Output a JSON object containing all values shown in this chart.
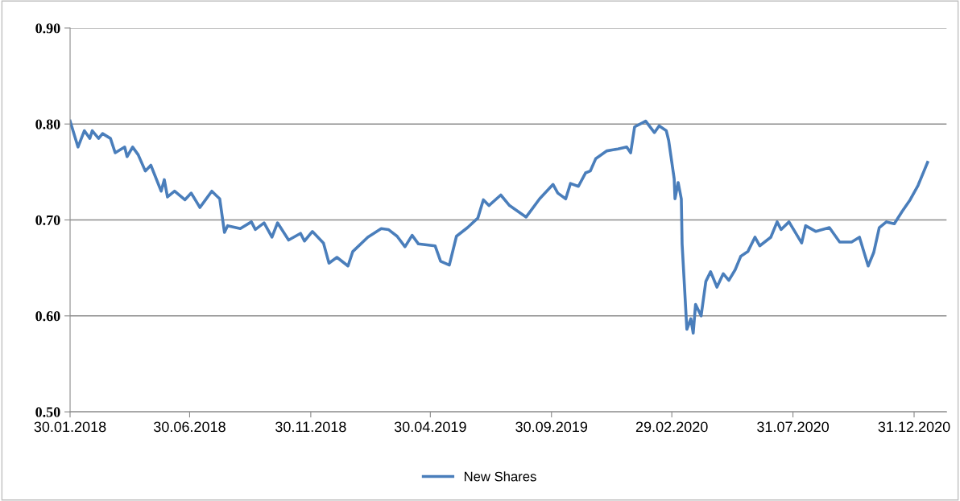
{
  "chart_data": {
    "type": "line",
    "xlim": [
      "2018-01-30",
      "2021-02-10"
    ],
    "xticks": [
      {
        "value": "2018-01-30",
        "label": "30.01.2018"
      },
      {
        "value": "2018-06-30",
        "label": "30.06.2018"
      },
      {
        "value": "2018-11-30",
        "label": "30.11.2018"
      },
      {
        "value": "2019-04-30",
        "label": "30.04.2019"
      },
      {
        "value": "2019-09-30",
        "label": "30.09.2019"
      },
      {
        "value": "2020-02-29",
        "label": "29.02.2020"
      },
      {
        "value": "2020-07-31",
        "label": "31.07.2020"
      },
      {
        "value": "2020-12-31",
        "label": "31.12.2020"
      }
    ],
    "ylim": [
      0.5,
      0.9
    ],
    "yticks": [
      {
        "value": 0.5,
        "label": "0.50"
      },
      {
        "value": 0.6,
        "label": "0.60"
      },
      {
        "value": 0.7,
        "label": "0.70"
      },
      {
        "value": 0.8,
        "label": "0.80"
      },
      {
        "value": 0.9,
        "label": "0.90"
      }
    ],
    "grid": "y",
    "legend": "bottom",
    "marker": "none",
    "line_style": "solid",
    "series": [
      {
        "name": "New Shares",
        "color": "#4a7ebb",
        "x": [
          "2018-01-30",
          "2018-02-09",
          "2018-02-17",
          "2018-02-24",
          "2018-02-27",
          "2018-03-07",
          "2018-03-12",
          "2018-03-22",
          "2018-03-28",
          "2018-04-09",
          "2018-04-12",
          "2018-04-19",
          "2018-04-26",
          "2018-05-05",
          "2018-05-12",
          "2018-05-25",
          "2018-05-29",
          "2018-06-02",
          "2018-06-11",
          "2018-06-24",
          "2018-07-02",
          "2018-07-13",
          "2018-07-28",
          "2018-08-07",
          "2018-08-13",
          "2018-08-17",
          "2018-09-02",
          "2018-09-16",
          "2018-09-21",
          "2018-10-02",
          "2018-10-12",
          "2018-10-19",
          "2018-11-02",
          "2018-11-17",
          "2018-11-22",
          "2018-12-02",
          "2018-12-16",
          "2018-12-23",
          "2019-01-02",
          "2019-01-16",
          "2019-01-22",
          "2019-02-10",
          "2019-02-27",
          "2019-03-08",
          "2019-03-19",
          "2019-03-29",
          "2019-04-07",
          "2019-04-15",
          "2019-05-06",
          "2019-05-13",
          "2019-05-24",
          "2019-06-02",
          "2019-06-16",
          "2019-06-29",
          "2019-07-06",
          "2019-07-13",
          "2019-07-28",
          "2019-08-08",
          "2019-08-29",
          "2019-09-15",
          "2019-10-02",
          "2019-10-08",
          "2019-10-18",
          "2019-10-24",
          "2019-11-03",
          "2019-11-12",
          "2019-11-18",
          "2019-11-25",
          "2019-12-09",
          "2019-12-23",
          "2020-01-03",
          "2020-01-08",
          "2020-01-13",
          "2020-01-27",
          "2020-02-07",
          "2020-02-13",
          "2020-02-22",
          "2020-02-25",
          "2020-03-03",
          "2020-03-04",
          "2020-03-08",
          "2020-03-12",
          "2020-03-13",
          "2020-03-19",
          "2020-03-24",
          "2020-03-27",
          "2020-03-30",
          "2020-04-06",
          "2020-04-12",
          "2020-04-18",
          "2020-04-26",
          "2020-05-04",
          "2020-05-11",
          "2020-05-19",
          "2020-05-26",
          "2020-06-04",
          "2020-06-13",
          "2020-06-19",
          "2020-07-03",
          "2020-07-11",
          "2020-07-16",
          "2020-07-26",
          "2020-08-11",
          "2020-08-16",
          "2020-08-29",
          "2020-09-15",
          "2020-09-28",
          "2020-10-13",
          "2020-10-23",
          "2020-11-03",
          "2020-11-10",
          "2020-11-17",
          "2020-11-26",
          "2020-12-06",
          "2020-12-16",
          "2020-12-26",
          "2021-01-05",
          "2021-01-12",
          "2021-01-17"
        ],
        "values": [
          0.803,
          0.776,
          0.793,
          0.785,
          0.793,
          0.785,
          0.79,
          0.785,
          0.77,
          0.776,
          0.766,
          0.776,
          0.768,
          0.751,
          0.757,
          0.73,
          0.742,
          0.724,
          0.73,
          0.721,
          0.728,
          0.713,
          0.73,
          0.722,
          0.687,
          0.694,
          0.691,
          0.698,
          0.69,
          0.697,
          0.682,
          0.697,
          0.679,
          0.686,
          0.678,
          0.688,
          0.676,
          0.655,
          0.661,
          0.652,
          0.667,
          0.682,
          0.691,
          0.69,
          0.683,
          0.672,
          0.684,
          0.675,
          0.673,
          0.657,
          0.653,
          0.683,
          0.692,
          0.702,
          0.721,
          0.715,
          0.726,
          0.715,
          0.703,
          0.722,
          0.737,
          0.728,
          0.722,
          0.738,
          0.735,
          0.749,
          0.751,
          0.764,
          0.772,
          0.774,
          0.776,
          0.77,
          0.797,
          0.803,
          0.791,
          0.798,
          0.793,
          0.783,
          0.743,
          0.722,
          0.739,
          0.722,
          0.675,
          0.586,
          0.597,
          0.582,
          0.612,
          0.6,
          0.636,
          0.646,
          0.63,
          0.644,
          0.637,
          0.648,
          0.662,
          0.667,
          0.682,
          0.673,
          0.682,
          0.698,
          0.69,
          0.698,
          0.676,
          0.694,
          0.688,
          0.692,
          0.677,
          0.677,
          0.682,
          0.652,
          0.666,
          0.692,
          0.698,
          0.696,
          0.709,
          0.721,
          0.736,
          0.75,
          0.76
        ]
      }
    ]
  }
}
